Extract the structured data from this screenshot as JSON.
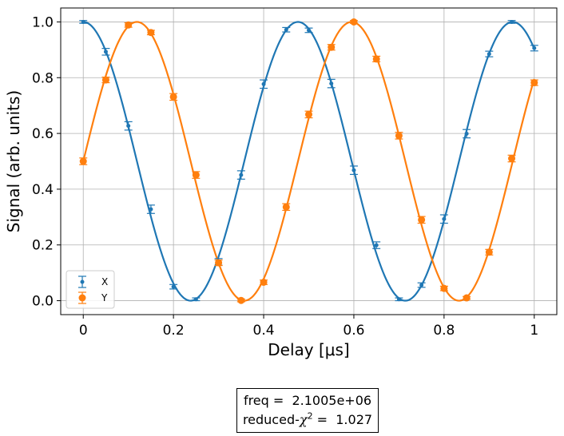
{
  "chart_data": {
    "type": "scatter",
    "xlabel": "Delay [μs]",
    "ylabel": "Signal (arb. units)",
    "xlim": [
      -0.05,
      1.05
    ],
    "ylim": [
      -0.05,
      1.05
    ],
    "xticks": [
      0,
      0.2,
      0.4,
      0.6,
      0.8,
      1
    ],
    "xtick_labels": [
      "0",
      "0.2",
      "0.4",
      "0.6",
      "0.8",
      "1"
    ],
    "yticks": [
      0.0,
      0.2,
      0.4,
      0.6,
      0.8,
      1.0
    ],
    "ytick_labels": [
      "0.0",
      "0.2",
      "0.4",
      "0.6",
      "0.8",
      "1.0"
    ],
    "grid": true,
    "legend_position": "lower-left",
    "x": [
      0,
      0.05,
      0.1,
      0.15,
      0.2,
      0.25,
      0.3,
      0.35,
      0.4,
      0.45,
      0.5,
      0.55,
      0.6,
      0.65,
      0.7,
      0.75,
      0.8,
      0.85,
      0.9,
      0.95,
      1.0
    ],
    "series": [
      {
        "name": "X",
        "color": "#1f77b4",
        "marker": "small-dot",
        "values": [
          1.0,
          0.893,
          0.627,
          0.328,
          0.05,
          0.005,
          0.139,
          0.451,
          0.777,
          0.972,
          0.97,
          0.779,
          0.468,
          0.199,
          0.005,
          0.056,
          0.293,
          0.599,
          0.885,
          1.0,
          0.906
        ],
        "errors": [
          0.005,
          0.012,
          0.015,
          0.015,
          0.008,
          0.005,
          0.012,
          0.015,
          0.015,
          0.008,
          0.008,
          0.015,
          0.015,
          0.012,
          0.005,
          0.008,
          0.015,
          0.015,
          0.01,
          0.005,
          0.01
        ],
        "fit": {
          "model": "cosine",
          "amplitude": 0.5,
          "offset": 0.5,
          "frequency_per_us": 2.1005,
          "phase": 0
        }
      },
      {
        "name": "Y",
        "color": "#ff7f0e",
        "marker": "large-dot",
        "values": [
          0.5,
          0.792,
          0.989,
          0.962,
          0.731,
          0.451,
          0.136,
          0.001,
          0.066,
          0.336,
          0.668,
          0.909,
          1.0,
          0.867,
          0.592,
          0.29,
          0.044,
          0.01,
          0.174,
          0.51,
          0.782
        ],
        "errors": [
          0.012,
          0.01,
          0.008,
          0.008,
          0.012,
          0.012,
          0.01,
          0.005,
          0.008,
          0.012,
          0.012,
          0.01,
          0.005,
          0.01,
          0.012,
          0.012,
          0.008,
          0.005,
          0.01,
          0.012,
          0.01
        ],
        "fit": {
          "model": "sine",
          "amplitude": 0.5,
          "offset": 0.5,
          "frequency_per_us": 2.1005,
          "phase": 0
        }
      }
    ]
  },
  "fit_box": {
    "freq_label": "freq =  ",
    "freq_value": "2.1005e+06",
    "chi_prefix": "reduced-",
    "chi_symbol": "χ",
    "chi_power": "2",
    "chi_suffix": " =  1.027"
  }
}
